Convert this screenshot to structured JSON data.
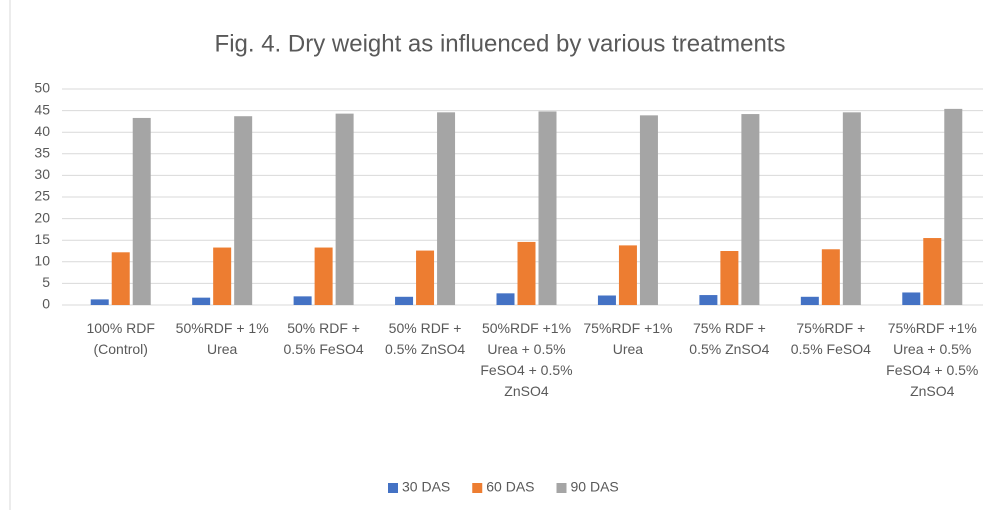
{
  "chart_data": {
    "type": "bar",
    "title": "Fig. 4. Dry weight as influenced by various treatments",
    "categories": [
      "100% RDF (Control)",
      "50%RDF + 1% Urea",
      "50% RDF + 0.5% FeSO4",
      "50% RDF + 0.5% ZnSO4",
      "50%RDF +1% Urea + 0.5% FeSO4 + 0.5% ZnSO4",
      "75%RDF +1% Urea",
      "75% RDF + 0.5% ZnSO4",
      "75%RDF + 0.5% FeSO4",
      "75%RDF +1% Urea + 0.5% FeSO4 + 0.5% ZnSO4"
    ],
    "series": [
      {
        "name": "30 DAS",
        "color": "#4472c4",
        "values": [
          1.3,
          1.7,
          2.0,
          1.9,
          2.7,
          2.2,
          2.3,
          1.9,
          2.9
        ]
      },
      {
        "name": "60 DAS",
        "color": "#ed7d31",
        "values": [
          12.2,
          13.3,
          13.3,
          12.6,
          14.6,
          13.8,
          12.5,
          12.9,
          15.5
        ]
      },
      {
        "name": "90 DAS",
        "color": "#a5a5a5",
        "values": [
          43.3,
          43.7,
          44.3,
          44.6,
          44.8,
          43.9,
          44.2,
          44.6,
          45.4
        ]
      }
    ],
    "ylim": [
      0,
      50
    ],
    "yticks": [
      0,
      5,
      10,
      15,
      20,
      25,
      30,
      35,
      40,
      45,
      50
    ],
    "grid": true,
    "legend": "bottom"
  }
}
